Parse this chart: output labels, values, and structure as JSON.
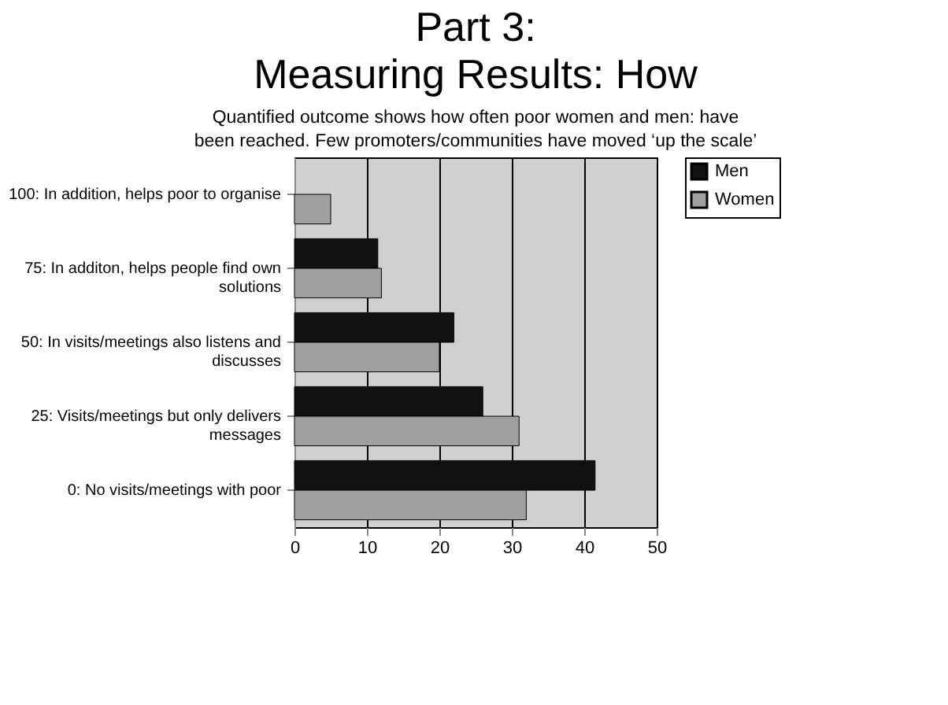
{
  "chart_data": {
    "type": "bar",
    "orientation": "horizontal",
    "title": "Part 3:\nMeasuring Results: How",
    "subtitle": "Quantified outcome shows how often poor women and men: have\nbeen reached. Few promoters/communities have moved ‘up the scale’",
    "categories": [
      "100: In addition, helps poor to organise",
      "75: In additon, helps people find own\nsolutions",
      "50: In visits/meetings also listens and\ndiscusses",
      "25: Visits/meetings but only delivers\nmessages",
      "0: No visits/meetings with poor"
    ],
    "series": [
      {
        "name": "Men",
        "color": "#111111",
        "values": [
          null,
          11.5,
          22,
          26,
          41.5
        ]
      },
      {
        "name": "Women",
        "color": "#a0a0a0",
        "values": [
          5,
          12,
          20,
          31,
          32
        ]
      }
    ],
    "xlim": [
      0,
      50
    ],
    "xticks": [
      0,
      10,
      20,
      30,
      40,
      50
    ],
    "grid": "x",
    "legend": "right"
  }
}
